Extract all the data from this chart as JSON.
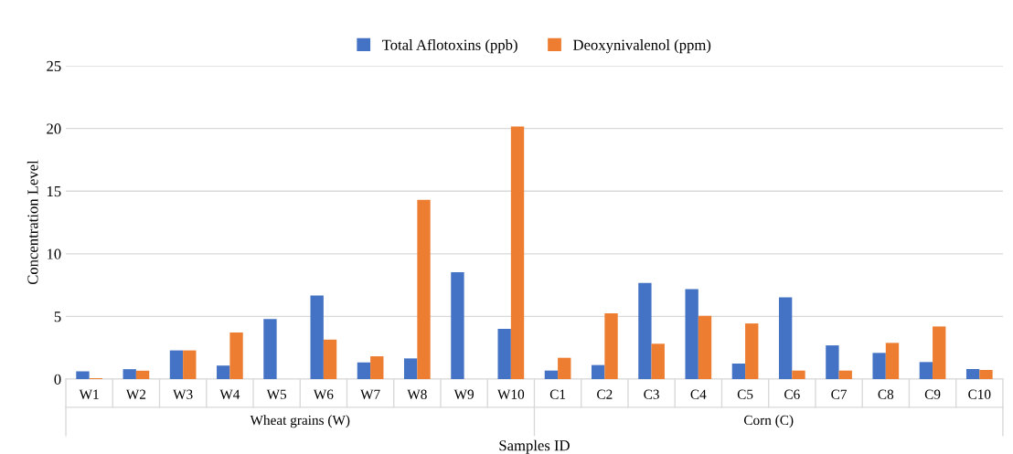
{
  "chart_data": {
    "type": "bar",
    "categories": [
      "W1",
      "W2",
      "W3",
      "W4",
      "W5",
      "W6",
      "W7",
      "W8",
      "W9",
      "W10",
      "C1",
      "C2",
      "C3",
      "C4",
      "C5",
      "C6",
      "C7",
      "C8",
      "C9",
      "C10"
    ],
    "series": [
      {
        "name": "Total Aflotoxins (ppb)",
        "color": "#4472c4",
        "values": [
          0.62,
          0.79,
          2.29,
          1.08,
          4.8,
          6.67,
          1.33,
          1.65,
          8.52,
          4.01,
          0.68,
          1.12,
          7.67,
          7.18,
          1.24,
          6.53,
          2.69,
          2.09,
          1.36,
          0.8
        ]
      },
      {
        "name": "Deoxynivalenol (ppm)",
        "color": "#ed7d31",
        "values": [
          0.07,
          0.67,
          2.29,
          3.72,
          0,
          3.15,
          1.82,
          14.31,
          0,
          20.15,
          1.7,
          5.24,
          2.82,
          5.05,
          4.44,
          0.68,
          0.68,
          2.89,
          4.2,
          0.73
        ]
      }
    ],
    "xlabel": "Samples ID",
    "ylabel": "Concentration Level",
    "annotations": [
      "Wheat grains (W)",
      "Corn (C)"
    ],
    "ylim": [
      0,
      25
    ],
    "yticks": [
      0,
      5,
      10,
      15,
      20,
      25
    ],
    "grid": "y",
    "legend": "top"
  }
}
